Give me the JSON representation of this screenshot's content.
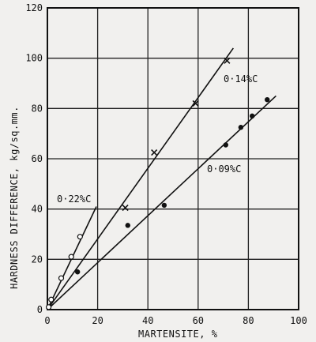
{
  "chart_data": {
    "type": "scatter",
    "title": "",
    "xlabel": "MARTENSITE, %",
    "ylabel": "HARDNESS DIFFERENCE, kg/sq.mm.",
    "xlim": [
      0,
      100
    ],
    "ylim": [
      0,
      120
    ],
    "xticks": [
      0,
      20,
      40,
      60,
      80,
      100
    ],
    "yticks": [
      0,
      20,
      40,
      60,
      80,
      100,
      120
    ],
    "grid": true,
    "series": [
      {
        "name": "0·22%C",
        "marker": "open-circle",
        "points": [
          [
            0.5,
            1
          ],
          [
            1.5,
            4
          ],
          [
            5.5,
            12.5
          ],
          [
            9.5,
            21
          ],
          [
            13,
            29
          ]
        ],
        "fit_line": [
          [
            0,
            0
          ],
          [
            19.5,
            41
          ]
        ]
      },
      {
        "name": "0·14%C",
        "marker": "x",
        "points": [
          [
            31,
            40.5
          ],
          [
            42.5,
            62.5
          ],
          [
            59,
            82
          ],
          [
            71.5,
            99
          ]
        ],
        "fit_line": [
          [
            0,
            0
          ],
          [
            74,
            104
          ]
        ]
      },
      {
        "name": "0·09%C",
        "marker": "filled-circle",
        "points": [
          [
            12,
            15
          ],
          [
            32,
            33.5
          ],
          [
            46.5,
            41.5
          ],
          [
            71,
            65.5
          ],
          [
            77,
            72.5
          ],
          [
            81.5,
            77
          ],
          [
            87.5,
            83.5
          ]
        ],
        "fit_line": [
          [
            0,
            0
          ],
          [
            91,
            85
          ]
        ]
      }
    ],
    "annotations": [
      "0·22%C",
      "0·14%C",
      "0·09%C"
    ]
  }
}
